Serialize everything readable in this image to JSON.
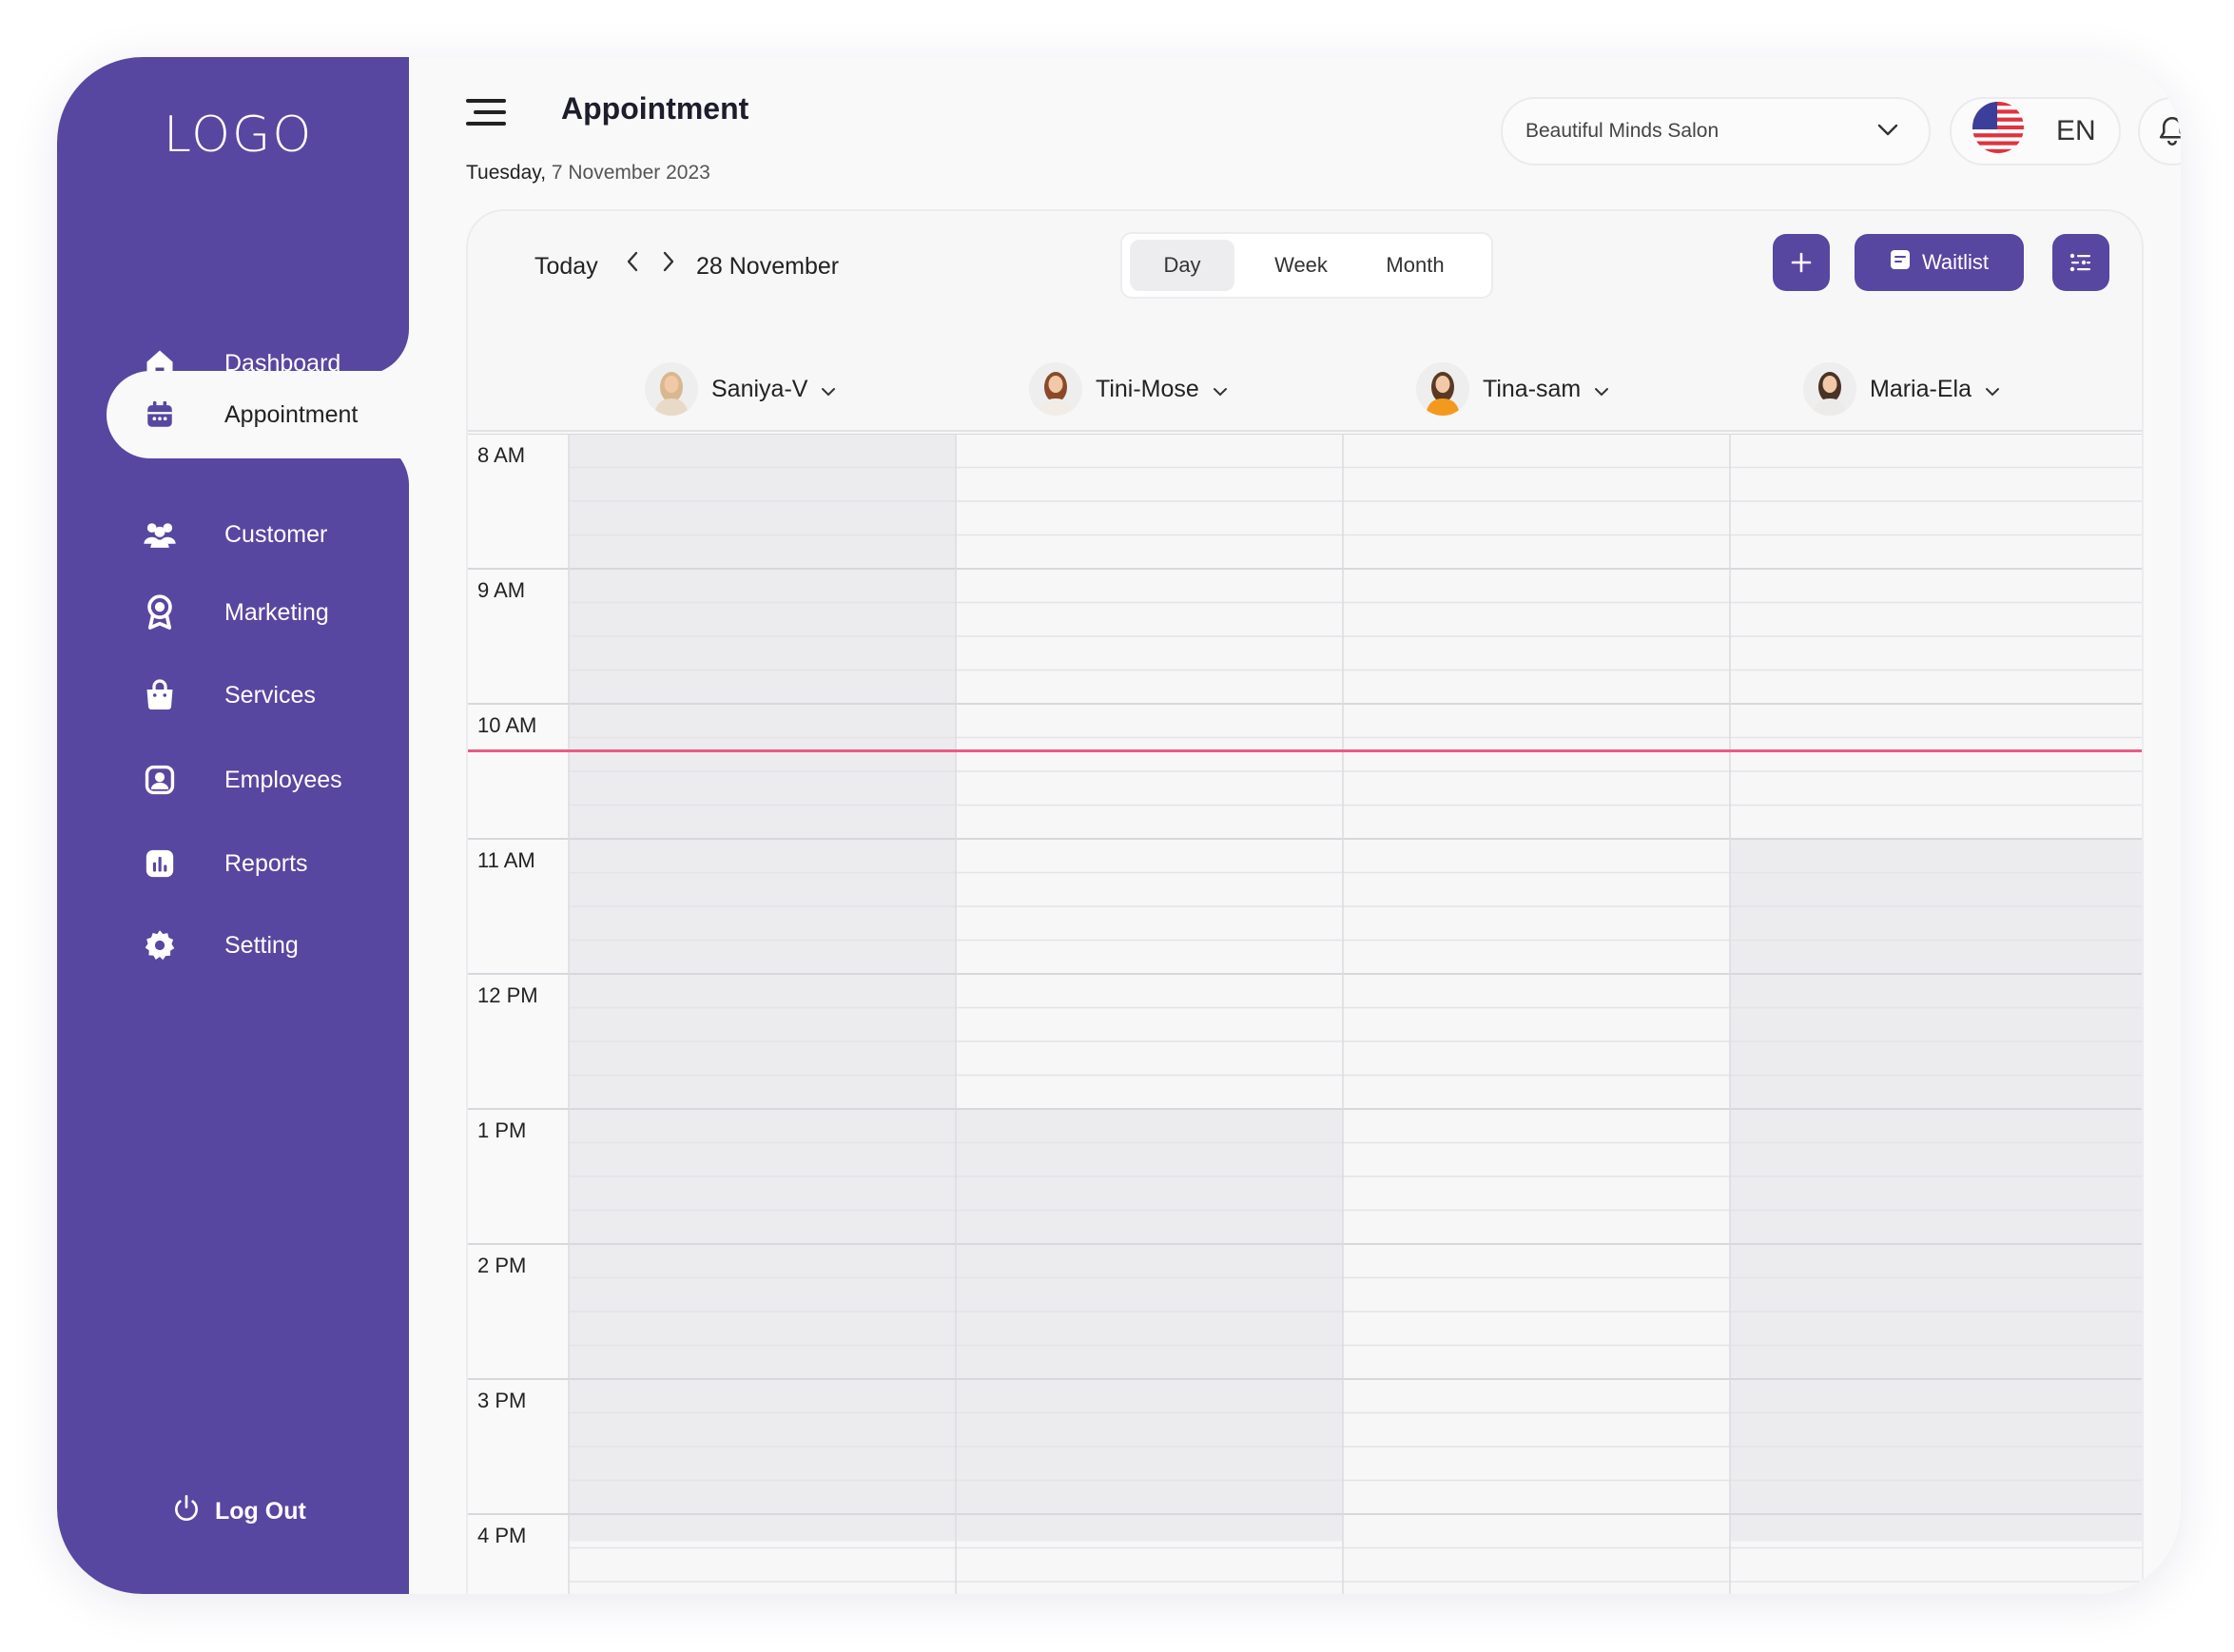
{
  "sidebar": {
    "logo": "LOGO",
    "items": [
      {
        "label": "Dashboard",
        "icon": "home-icon"
      },
      {
        "label": "Appointment",
        "icon": "calendar-icon"
      },
      {
        "label": "Customer",
        "icon": "users-icon"
      },
      {
        "label": "Marketing",
        "icon": "award-icon"
      },
      {
        "label": "Services",
        "icon": "bag-icon"
      },
      {
        "label": "Employees",
        "icon": "employee-icon"
      },
      {
        "label": "Reports",
        "icon": "reports-icon"
      },
      {
        "label": "Setting",
        "icon": "gear-icon"
      }
    ],
    "active_index": 1,
    "logout": "Log Out"
  },
  "header": {
    "title": "Appointment",
    "date_day": "Tuesday,",
    "date_rest": " 7 November 2023",
    "salon": "Beautiful Minds Salon",
    "lang": "EN"
  },
  "toolbar": {
    "today": "Today",
    "prev": "‹",
    "next": "›",
    "current_date": "28 November",
    "views": [
      "Day",
      "Week",
      "Month"
    ],
    "active_view": "Day",
    "waitlist": "Waitlist"
  },
  "staff": [
    {
      "name": "Saniya-V",
      "shirt": "#e8d9c8",
      "hair": "#d9b78f"
    },
    {
      "name": "Tini-Mose",
      "shirt": "#f1ede6",
      "hair": "#8a4a2a"
    },
    {
      "name": "Tina-sam",
      "shirt": "#f39a1e",
      "hair": "#5a3a22"
    },
    {
      "name": "Maria-Ela",
      "shirt": "#ecebea",
      "hair": "#4a3326"
    }
  ],
  "times": [
    "8  AM",
    "9  AM",
    "10  AM",
    "11  AM",
    "12  PM",
    "1  PM",
    "2  PM",
    "3  PM",
    "4  PM"
  ],
  "colors": {
    "brand": "#5747a0",
    "now_line": "#ea5b85",
    "unavailable": "#ececef",
    "available": "#f7f7f8"
  }
}
